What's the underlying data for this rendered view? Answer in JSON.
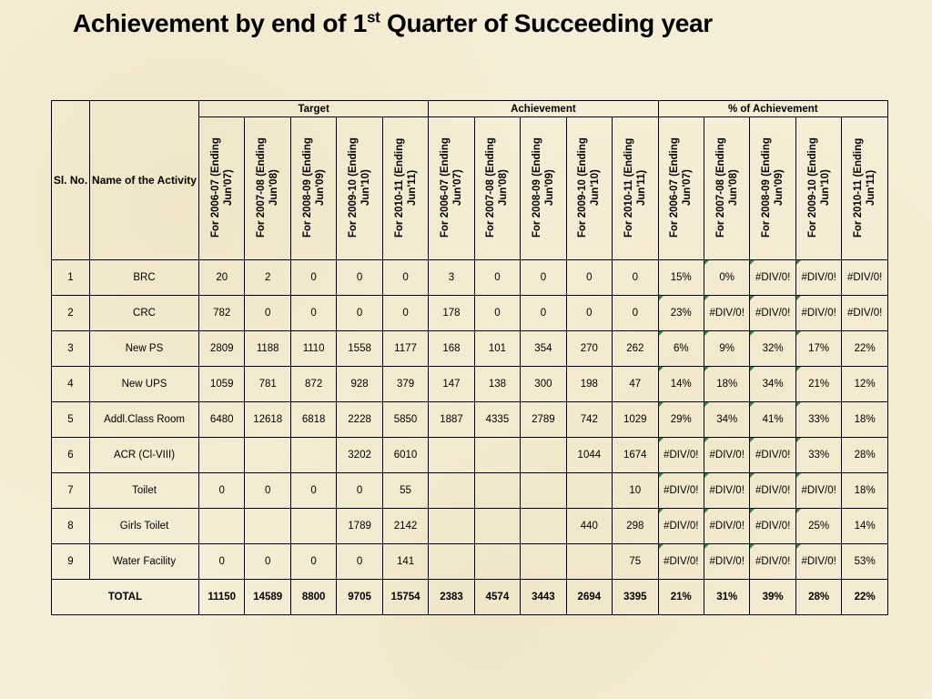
{
  "title": {
    "prefix": "Achievement by end of 1",
    "superscript": "st",
    "suffix": " Quarter of Succeeding year"
  },
  "table": {
    "header": {
      "sl_no": "Sl. No.",
      "activity": "Name of the Activity",
      "group_target": "Target",
      "group_achievement": "Achievement",
      "group_percent": "% of Achievement",
      "periods": [
        "For 2006-07 (Ending Jun'07)",
        "For 2007-08 (Ending Jun'08)",
        "For 2008-09 (Ending Jun'09)",
        "For 2009-10 (Ending Jun'10)",
        "For 2010-11 (Ending Jun'11)"
      ]
    },
    "rows": [
      {
        "sl": "1",
        "name": "BRC",
        "target": [
          "20",
          "2",
          "0",
          "0",
          "0"
        ],
        "achievement": [
          "3",
          "0",
          "0",
          "0",
          "0"
        ],
        "percent": [
          "15%",
          "0%",
          "#DIV/0!",
          "#DIV/0!",
          "#DIV/0!"
        ]
      },
      {
        "sl": "2",
        "name": "CRC",
        "target": [
          "782",
          "0",
          "0",
          "0",
          "0"
        ],
        "achievement": [
          "178",
          "0",
          "0",
          "0",
          "0"
        ],
        "percent": [
          "23%",
          "#DIV/0!",
          "#DIV/0!",
          "#DIV/0!",
          "#DIV/0!"
        ]
      },
      {
        "sl": "3",
        "name": "New PS",
        "target": [
          "2809",
          "1188",
          "1110",
          "1558",
          "1177"
        ],
        "achievement": [
          "168",
          "101",
          "354",
          "270",
          "262"
        ],
        "percent": [
          "6%",
          "9%",
          "32%",
          "17%",
          "22%"
        ]
      },
      {
        "sl": "4",
        "name": "New UPS",
        "target": [
          "1059",
          "781",
          "872",
          "928",
          "379"
        ],
        "achievement": [
          "147",
          "138",
          "300",
          "198",
          "47"
        ],
        "percent": [
          "14%",
          "18%",
          "34%",
          "21%",
          "12%"
        ]
      },
      {
        "sl": "5",
        "name": "Addl.Class Room",
        "target": [
          "6480",
          "12618",
          "6818",
          "2228",
          "5850"
        ],
        "achievement": [
          "1887",
          "4335",
          "2789",
          "742",
          "1029"
        ],
        "percent": [
          "29%",
          "34%",
          "41%",
          "33%",
          "18%"
        ]
      },
      {
        "sl": "6",
        "name": "ACR (Cl-VIII)",
        "target": [
          "",
          "",
          "",
          "3202",
          "6010"
        ],
        "achievement": [
          "",
          "",
          "",
          "1044",
          "1674"
        ],
        "percent": [
          "#DIV/0!",
          "#DIV/0!",
          "#DIV/0!",
          "33%",
          "28%"
        ]
      },
      {
        "sl": "7",
        "name": "Toilet",
        "target": [
          "0",
          "0",
          "0",
          "0",
          "55"
        ],
        "achievement": [
          "",
          "",
          "",
          "",
          "10"
        ],
        "percent": [
          "#DIV/0!",
          "#DIV/0!",
          "#DIV/0!",
          "#DIV/0!",
          "18%"
        ]
      },
      {
        "sl": "8",
        "name": "Girls Toilet",
        "target": [
          "",
          "",
          "",
          "1789",
          "2142"
        ],
        "achievement": [
          "",
          "",
          "",
          "440",
          "298"
        ],
        "percent": [
          "#DIV/0!",
          "#DIV/0!",
          "#DIV/0!",
          "25%",
          "14%"
        ]
      },
      {
        "sl": "9",
        "name": "Water Facility",
        "target": [
          "0",
          "0",
          "0",
          "0",
          "141"
        ],
        "achievement": [
          "",
          "",
          "",
          "",
          "75"
        ],
        "percent": [
          "#DIV/0!",
          "#DIV/0!",
          "#DIV/0!",
          "#DIV/0!",
          "53%"
        ]
      }
    ],
    "total": {
      "label": "TOTAL",
      "target": [
        "11150",
        "14589",
        "8800",
        "9705",
        "15754"
      ],
      "achievement": [
        "2383",
        "4574",
        "3443",
        "2694",
        "3395"
      ],
      "percent": [
        "21%",
        "31%",
        "39%",
        "28%",
        "22%"
      ]
    },
    "flag_color": "#2f8a3a"
  }
}
